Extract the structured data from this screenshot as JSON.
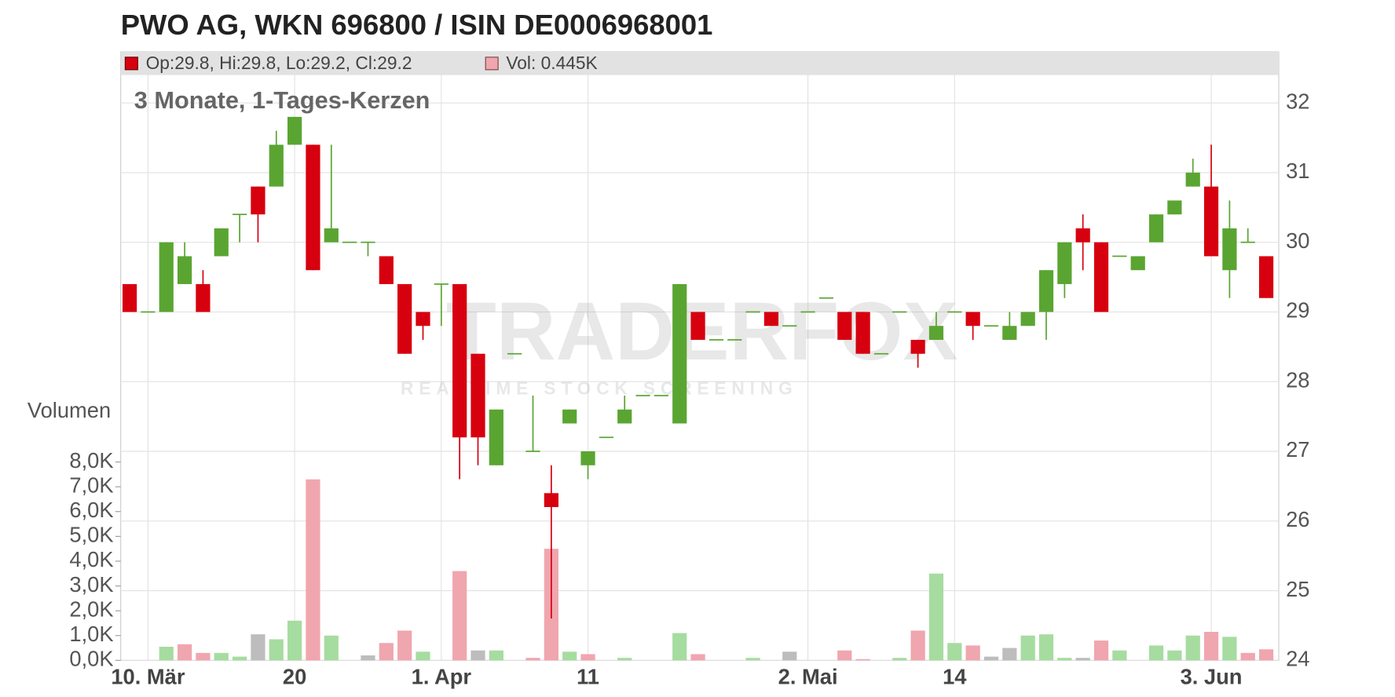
{
  "chart_data": {
    "type": "candlestick",
    "title": "PWO AG, WKN 696800 / ISIN DE0006968001",
    "subtitle": "3 Monate, 1-Tages-Kerzen",
    "watermark": {
      "brand": "TRADERFOX",
      "tagline": "REALTIME STOCK SCREENING"
    },
    "legend": {
      "price": {
        "label": "Op:29.8, Hi:29.8, Lo:29.2, Cl:29.2",
        "color": "#d7000f"
      },
      "volume": {
        "label": "Vol: 0.445K",
        "color": "#f0a6ae"
      }
    },
    "up_color": "#5aa532",
    "down_color": "#d7000f",
    "categories": [
      null,
      "10. Mär",
      null,
      null,
      null,
      null,
      null,
      null,
      null,
      "20",
      null,
      null,
      null,
      null,
      null,
      null,
      null,
      "1. Apr",
      null,
      null,
      null,
      null,
      null,
      null,
      null,
      "11",
      null,
      null,
      null,
      null,
      null,
      null,
      null,
      null,
      null,
      null,
      null,
      "2. Mai",
      null,
      null,
      null,
      null,
      null,
      null,
      null,
      "14",
      null,
      null,
      null,
      null,
      null,
      null,
      null,
      null,
      null,
      null,
      null,
      null,
      null,
      "3. Jun",
      null,
      null,
      null
    ],
    "open": [
      29.4,
      29,
      29,
      29.4,
      29.4,
      29.8,
      30.4,
      30.8,
      30.8,
      31.4,
      31.4,
      30.0,
      30,
      30,
      29.8,
      29.4,
      29.0,
      29.4,
      29.4,
      28.4,
      26.8,
      28.4,
      27,
      26.4,
      27.4,
      26.8,
      27.2,
      27.4,
      27.8,
      27.8,
      27.4,
      29.0,
      28.6,
      28.6,
      29.0,
      29.0,
      28.8,
      29.0,
      29.2,
      29.0,
      29.0,
      28.4,
      29.0,
      28.6,
      28.6,
      29.0,
      29.0,
      28.8,
      28.6,
      28.8,
      29.0,
      29.4,
      30.2,
      30.0,
      29.8,
      29.6,
      30.0,
      30.4,
      30.8,
      30.8,
      29.6,
      30.0,
      29.8
    ],
    "high": [
      29.4,
      29,
      30,
      30.0,
      29.6,
      30.2,
      30.4,
      30.8,
      31.6,
      31.8,
      31.4,
      31.4,
      30,
      30,
      29.8,
      29.4,
      29.0,
      29.4,
      29.4,
      28.4,
      27.6,
      28.4,
      27.8,
      26.8,
      27.6,
      27.0,
      27.2,
      27.8,
      27.8,
      27.8,
      29.4,
      29.0,
      28.6,
      28.6,
      29.0,
      29.0,
      28.8,
      29.0,
      29.2,
      29.0,
      29.0,
      28.4,
      29.0,
      28.6,
      29.0,
      29.0,
      29.0,
      28.8,
      29.0,
      29.0,
      29.6,
      30.0,
      30.4,
      30.0,
      29.8,
      29.8,
      30.4,
      30.6,
      31.2,
      31.4,
      30.6,
      30.2,
      29.8
    ],
    "low": [
      29.0,
      29,
      29,
      29.4,
      29.0,
      29.8,
      30.0,
      30.0,
      30.8,
      31.4,
      29.6,
      30.0,
      30,
      29.8,
      29.4,
      28.4,
      28.6,
      28.8,
      26.6,
      26.8,
      26.8,
      28.4,
      27,
      24.6,
      27.4,
      26.6,
      27.2,
      27.4,
      27.8,
      27.8,
      27.4,
      28.6,
      28.6,
      28.6,
      29.0,
      28.8,
      28.8,
      29.0,
      29.2,
      28.6,
      28.4,
      28.4,
      29.0,
      28.2,
      28.6,
      29.0,
      28.6,
      28.8,
      28.6,
      28.8,
      28.6,
      29.2,
      29.6,
      29.0,
      29.8,
      29.6,
      30.0,
      30.4,
      30.8,
      29.8,
      29.2,
      30.0,
      29.2
    ],
    "close": [
      29.0,
      29,
      30,
      29.8,
      29.0,
      30.2,
      30.4,
      30.4,
      31.4,
      31.8,
      29.6,
      30.2,
      30,
      30,
      29.4,
      28.4,
      28.8,
      29.4,
      27.2,
      27.2,
      27.6,
      28.4,
      27,
      26.2,
      27.6,
      27.0,
      27.2,
      27.6,
      27.8,
      27.8,
      29.4,
      28.6,
      28.6,
      28.6,
      29.0,
      28.8,
      28.8,
      29.0,
      29.2,
      28.6,
      28.4,
      28.4,
      29.0,
      28.4,
      28.8,
      29.0,
      28.8,
      28.8,
      28.8,
      29.0,
      29.6,
      30.0,
      30.0,
      29.0,
      29.8,
      29.8,
      30.4,
      30.6,
      31.0,
      29.8,
      30.2,
      30.0,
      29.2
    ],
    "ylim": [
      24,
      32.4
    ],
    "yticks": [
      24,
      25,
      26,
      27,
      28,
      29,
      30,
      31,
      32
    ],
    "grid": true,
    "volume": {
      "axis_label": "Volumen",
      "values": [
        0,
        0,
        0.55,
        0.65,
        0.3,
        0.3,
        0.15,
        1.05,
        0.85,
        1.6,
        7.3,
        1.0,
        0,
        0.2,
        0.7,
        1.2,
        0.35,
        0,
        3.6,
        0.4,
        0.4,
        0,
        0.1,
        4.5,
        0.35,
        0.25,
        0,
        0.1,
        0,
        0,
        1.1,
        0.25,
        0,
        0,
        0.1,
        0,
        0.35,
        0,
        0,
        0.4,
        0.05,
        0,
        0.1,
        1.2,
        3.5,
        0.7,
        0.6,
        0.15,
        0.5,
        1.0,
        1.05,
        0.1,
        0.1,
        0.8,
        0.4,
        0,
        0.6,
        0.4,
        1.0,
        1.15,
        0.95,
        0.3,
        0.445
      ],
      "colors": [
        "#a6dca0",
        "#a6dca0",
        "#a6dca0",
        "#f0a6ae",
        "#f0a6ae",
        "#a6dca0",
        "#a6dca0",
        "#bdbdbd",
        "#a6dca0",
        "#a6dca0",
        "#f0a6ae",
        "#a6dca0",
        "#bdbdbd",
        "#bdbdbd",
        "#f0a6ae",
        "#f0a6ae",
        "#a6dca0",
        "#a6dca0",
        "#f0a6ae",
        "#bdbdbd",
        "#a6dca0",
        "#a6dca0",
        "#f0a6ae",
        "#f0a6ae",
        "#a6dca0",
        "#f0a6ae",
        "#a6dca0",
        "#a6dca0",
        "#a6dca0",
        "#a6dca0",
        "#a6dca0",
        "#f0a6ae",
        "#a6dca0",
        "#a6dca0",
        "#a6dca0",
        "#f0a6ae",
        "#bdbdbd",
        "#a6dca0",
        "#a6dca0",
        "#f0a6ae",
        "#f0a6ae",
        "#a6dca0",
        "#a6dca0",
        "#f0a6ae",
        "#a6dca0",
        "#a6dca0",
        "#f0a6ae",
        "#bdbdbd",
        "#bdbdbd",
        "#a6dca0",
        "#a6dca0",
        "#a6dca0",
        "#bdbdbd",
        "#f0a6ae",
        "#a6dca0",
        "#a6dca0",
        "#a6dca0",
        "#a6dca0",
        "#a6dca0",
        "#f0a6ae",
        "#a6dca0",
        "#f0a6ae",
        "#f0a6ae"
      ],
      "ylim": [
        0,
        8
      ],
      "yticks": [
        {
          "value": 0,
          "label": "0,0K"
        },
        {
          "value": 1,
          "label": "1,0K"
        },
        {
          "value": 2,
          "label": "2,0K"
        },
        {
          "value": 3,
          "label": "3,0K"
        },
        {
          "value": 4,
          "label": "4,0K"
        },
        {
          "value": 5,
          "label": "5,0K"
        },
        {
          "value": 6,
          "label": "6,0K"
        },
        {
          "value": 7,
          "label": "7,0K"
        },
        {
          "value": 8,
          "label": "8,0K"
        }
      ]
    }
  }
}
